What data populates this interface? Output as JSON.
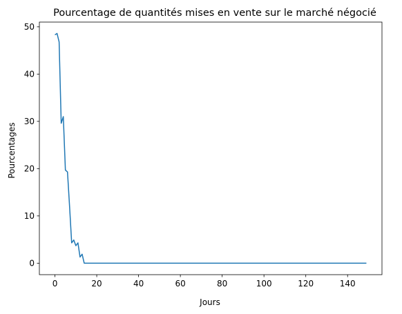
{
  "chart_data": {
    "type": "line",
    "title": "Pourcentage de quantités mises en vente sur le marché négocié",
    "xlabel": "Jours",
    "ylabel": "Pourcentages",
    "xlim": [
      -7.45,
      156.45
    ],
    "ylim": [
      -2.43,
      51.0
    ],
    "xticks": [
      0,
      20,
      40,
      60,
      80,
      100,
      120,
      140
    ],
    "yticks": [
      0,
      10,
      20,
      30,
      40,
      50
    ],
    "grid": false,
    "legend": "none",
    "series": [
      {
        "color": "#1f77b4",
        "x": [
          0,
          1,
          2,
          3,
          4,
          5,
          6,
          7,
          8,
          9,
          10,
          11,
          12,
          13,
          14,
          15,
          20,
          40,
          60,
          80,
          100,
          120,
          140,
          149
        ],
        "y": [
          48.3,
          48.6,
          46.8,
          29.6,
          31.0,
          19.7,
          19.3,
          12.0,
          4.3,
          4.9,
          3.7,
          4.3,
          1.3,
          1.9,
          0.0,
          0.0,
          0.0,
          0.0,
          0.0,
          0.0,
          0.0,
          0.0,
          0.0,
          0.0
        ]
      }
    ]
  }
}
